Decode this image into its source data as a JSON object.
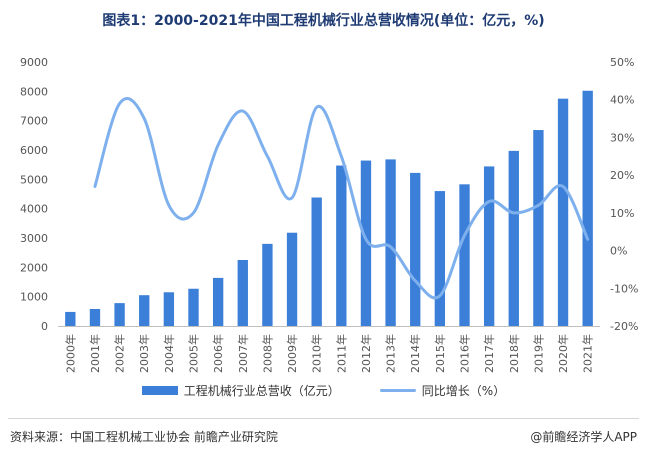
{
  "chart_data": {
    "type": "bar",
    "title": "图表1：2000-2021年中国工程机械行业总营收情况(单位：亿元，%)",
    "categories": [
      "2000年",
      "2001年",
      "2002年",
      "2003年",
      "2004年",
      "2005年",
      "2006年",
      "2007年",
      "2008年",
      "2009年",
      "2010年",
      "2011年",
      "2012年",
      "2013年",
      "2014年",
      "2015年",
      "2016年",
      "2017年",
      "2018年",
      "2019年",
      "2020年",
      "2021年"
    ],
    "series": [
      {
        "name": "工程机械行业总营收（亿元）",
        "type": "bar",
        "axis": "left",
        "color": "#3b7fd9",
        "values": [
          480,
          580,
          780,
          1050,
          1150,
          1270,
          1640,
          2250,
          2800,
          3180,
          4380,
          5470,
          5640,
          5680,
          5220,
          4600,
          4830,
          5440,
          5970,
          6680,
          7750,
          8020
        ]
      },
      {
        "name": "同比增长（%）",
        "type": "line",
        "axis": "right",
        "color": "#7eb0ee",
        "values": [
          null,
          17,
          39,
          35,
          12,
          10,
          28,
          37,
          25,
          14,
          38,
          25,
          3,
          1,
          -8,
          -12,
          4,
          13,
          10,
          12,
          17,
          3
        ]
      }
    ],
    "ylim_left": [
      0,
      9000
    ],
    "yticks_left": [
      0,
      1000,
      2000,
      3000,
      4000,
      5000,
      6000,
      7000,
      8000,
      9000
    ],
    "ylim_right": [
      -20,
      50
    ],
    "yticks_right": [
      "-20%",
      "-10%",
      "0%",
      "10%",
      "20%",
      "30%",
      "40%",
      "50%"
    ],
    "legend_position": "bottom",
    "grid": false
  },
  "legend": {
    "bar_label": "工程机械行业总营收（亿元）",
    "line_label": "同比增长（%）"
  },
  "footer": {
    "source": "资料来源：中国工程机械工业协会 前瞻产业研究院",
    "brand": "@前瞻经济学人APP"
  }
}
